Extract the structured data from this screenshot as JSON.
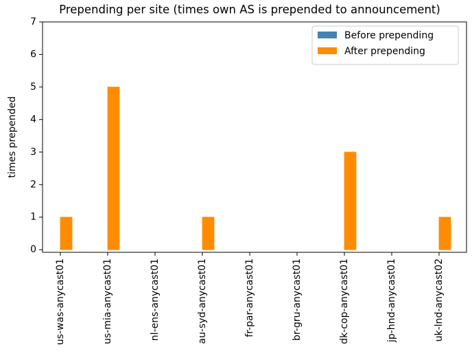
{
  "chart_data": {
    "type": "bar",
    "title": "Prepending per site (times own AS is prepended to announcement)",
    "ylabel": "times prepended",
    "categories": [
      "us-was-anycast01",
      "us-mia-anycast01",
      "nl-ens-anycast01",
      "au-syd-anycast01",
      "fr-par-anycast01",
      "br-gru-anycast01",
      "dk-cop-anycast01",
      "jp-hnd-anycast01",
      "uk-lnd-anycast02"
    ],
    "series": [
      {
        "name": "Before prepending",
        "color": "#4682b4",
        "values": [
          0,
          0,
          0,
          0,
          0,
          0,
          0,
          0,
          0
        ]
      },
      {
        "name": "After prepending",
        "color": "#ff8c00",
        "values": [
          1,
          5,
          0,
          1,
          0,
          0,
          3,
          0,
          1
        ]
      }
    ],
    "ylim": [
      -0.08,
      7
    ],
    "yticks": [
      0,
      1,
      2,
      3,
      4,
      5,
      6,
      7
    ],
    "legend": "upper right"
  }
}
